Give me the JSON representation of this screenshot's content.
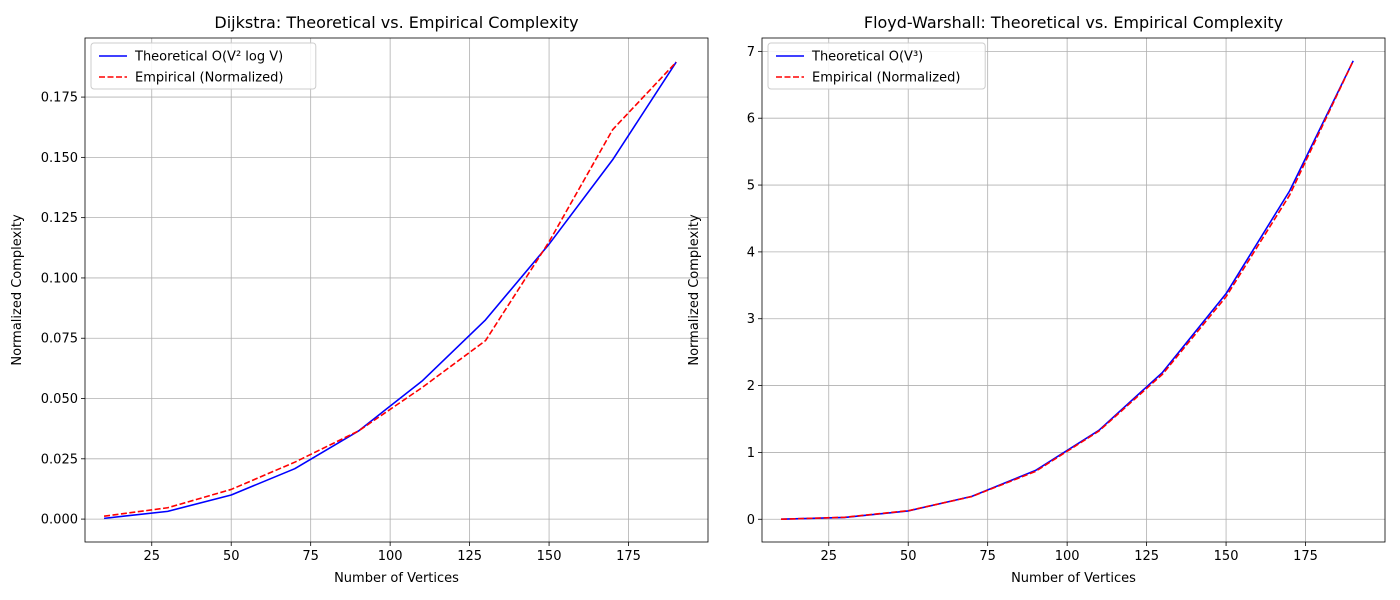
{
  "chart_data": [
    {
      "type": "line",
      "title": "Dijkstra: Theoretical vs. Empirical Complexity",
      "xlabel": "Number of Vertices",
      "ylabel": "Normalized Complexity",
      "xlim": [
        4,
        200
      ],
      "ylim": [
        -0.0095,
        0.1995
      ],
      "x_ticks": [
        25,
        50,
        75,
        100,
        125,
        150,
        175
      ],
      "y_ticks": [
        0.0,
        0.025,
        0.05,
        0.075,
        0.1,
        0.125,
        0.15,
        0.175
      ],
      "y_tick_labels": [
        "0.000",
        "0.025",
        "0.050",
        "0.075",
        "0.100",
        "0.125",
        "0.150",
        "0.175"
      ],
      "grid": true,
      "legend_position": "top-left",
      "series": [
        {
          "name": "Theoretical O(V² log V)",
          "color": "#0000ff",
          "style": "solid",
          "x": [
            10,
            30,
            50,
            70,
            90,
            110,
            130,
            150,
            170,
            190
          ],
          "y": [
            0.0003,
            0.0032,
            0.01,
            0.0209,
            0.0365,
            0.0572,
            0.0826,
            0.114,
            0.149,
            0.1895
          ]
        },
        {
          "name": "Empirical (Normalized)",
          "color": "#ff0000",
          "style": "dashed",
          "x": [
            10,
            30,
            50,
            70,
            90,
            110,
            130,
            150,
            170,
            190
          ],
          "y": [
            0.0012,
            0.0047,
            0.0123,
            0.0236,
            0.0365,
            0.0545,
            0.074,
            0.115,
            0.1615,
            0.1895
          ]
        }
      ]
    },
    {
      "type": "line",
      "title": "Floyd-Warshall: Theoretical vs. Empirical Complexity",
      "xlabel": "Number of Vertices",
      "ylabel": "Normalized Complexity",
      "xlim": [
        4,
        200
      ],
      "ylim": [
        -0.34,
        7.2
      ],
      "x_ticks": [
        25,
        50,
        75,
        100,
        125,
        150,
        175
      ],
      "y_ticks": [
        0,
        1,
        2,
        3,
        4,
        5,
        6,
        7
      ],
      "y_tick_labels": [
        "0",
        "1",
        "2",
        "3",
        "4",
        "5",
        "6",
        "7"
      ],
      "grid": true,
      "legend_position": "top-left",
      "series": [
        {
          "name": "Theoretical O(V³)",
          "color": "#0000ff",
          "style": "solid",
          "x": [
            10,
            30,
            50,
            70,
            90,
            110,
            130,
            150,
            170,
            190
          ],
          "y": [
            0.001,
            0.027,
            0.125,
            0.343,
            0.729,
            1.331,
            2.197,
            3.375,
            4.913,
            6.859
          ]
        },
        {
          "name": "Empirical (Normalized)",
          "color": "#ff0000",
          "style": "dashed",
          "x": [
            10,
            30,
            50,
            70,
            90,
            110,
            130,
            150,
            170,
            190
          ],
          "y": [
            0.001,
            0.03,
            0.128,
            0.34,
            0.715,
            1.32,
            2.17,
            3.33,
            4.85,
            6.859
          ]
        }
      ]
    }
  ]
}
